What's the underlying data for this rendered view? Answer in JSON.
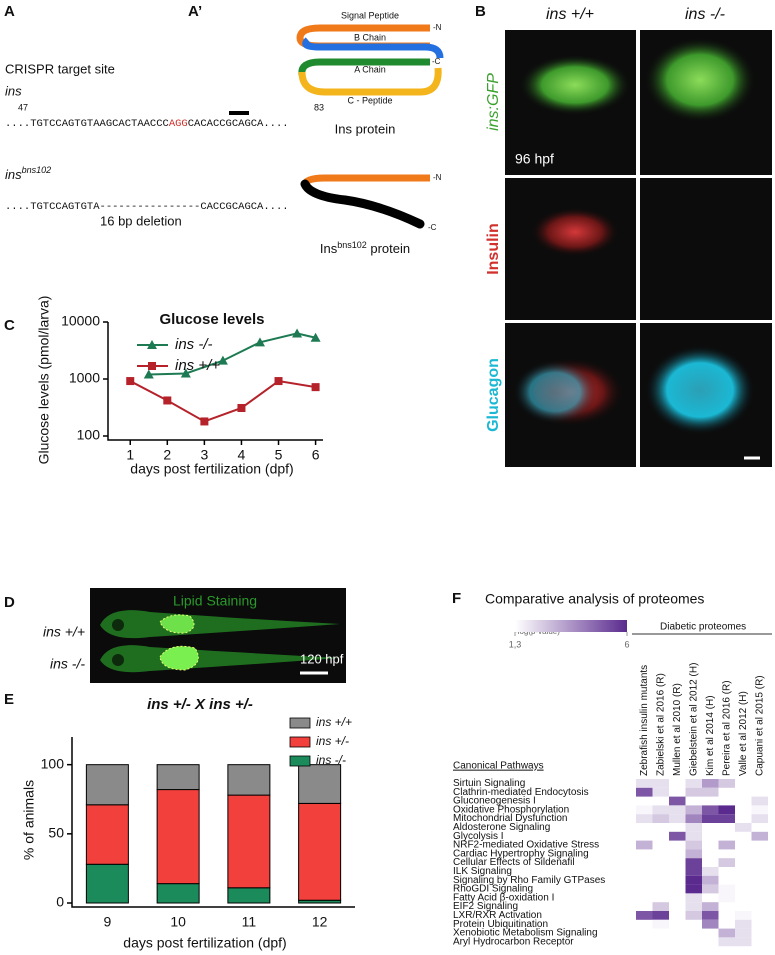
{
  "panels": {
    "A": {
      "label": "A",
      "target_title": "CRISPR target site",
      "gene": "ins",
      "pos_start": "47",
      "pos_end": "83",
      "wt_seq": {
        "before": "....TGTCCAGTGTAAGCACTAACCC",
        "pam": "AGG",
        "after": "CACACCGCAGCA...."
      },
      "mut_gene": {
        "gene": "ins",
        "superscript": "bns102"
      },
      "mut_seq": "....TGTCCAGTGTA----------------CACCGCAGCA....",
      "deletion": "16 bp deletion"
    },
    "A2": {
      "label": "A’",
      "parts": [
        "Signal Peptide",
        "B Chain",
        "A Chain",
        "C - Peptide"
      ],
      "n_end": "-N",
      "c_end": "-C",
      "caption": "Ins protein",
      "mut_caption": {
        "name": "Ins",
        "superscript": "bns102",
        "suffix": "protein"
      }
    },
    "B": {
      "label": "B",
      "columns": [
        "ins +/+",
        "ins -/-"
      ],
      "rows": [
        "ins:GFP",
        "Insulin",
        "Glucagon"
      ],
      "stage": "96 hpf"
    },
    "C": {
      "label": "C"
    },
    "D": {
      "label": "D",
      "title": "Lipid Staining",
      "rows": [
        "ins +/+",
        "ins -/-"
      ],
      "stage": "120 hpf"
    },
    "E": {
      "label": "E"
    },
    "F": {
      "label": "F",
      "title": "Comparative analysis of proteomes",
      "group": "Diabetic proteomes",
      "row_header": "Canonical Pathways"
    }
  },
  "chart_data": [
    {
      "type": "line",
      "title": "Glucose levels",
      "xlabel": "days post fertilization (dpf)",
      "ylabel": "Glucose levels (pmol/larva)",
      "xlim": [
        0.4,
        6.2
      ],
      "xticks": [
        1,
        2,
        3,
        4,
        5,
        6
      ],
      "ylim": [
        100,
        10000
      ],
      "yticks": [
        100,
        1000,
        10000
      ],
      "log_y": true,
      "series": [
        {
          "name": "ins -/-",
          "color": "#1d7a52",
          "marker": "triangle",
          "x": [
            1.5,
            2.5,
            3.5,
            4.5,
            5.5,
            6
          ],
          "values": [
            1200,
            1250,
            2100,
            4400,
            6300,
            5300
          ]
        },
        {
          "name": "ins +/+",
          "color": "#b5222a",
          "marker": "square",
          "x": [
            1,
            2,
            3,
            4,
            5,
            6
          ],
          "values": [
            920,
            420,
            180,
            310,
            920,
            720
          ]
        }
      ]
    },
    {
      "type": "stacked_bar",
      "title": "ins +/- X ins +/-",
      "xlabel": "days post fertilization (dpf)",
      "ylabel": "% of animals",
      "categories": [
        "9",
        "10",
        "11",
        "12"
      ],
      "ylim": [
        0,
        120
      ],
      "yticks": [
        0,
        50,
        100
      ],
      "series": [
        {
          "name": "ins -/-",
          "color": "#1c8b5c",
          "values": [
            28,
            14,
            11,
            2
          ]
        },
        {
          "name": "ins +/-",
          "color": "#f2403c",
          "values": [
            43,
            68,
            67,
            70
          ]
        },
        {
          "name": "ins +/+",
          "color": "#8a8a8a",
          "values": [
            29,
            18,
            22,
            28
          ]
        }
      ]
    },
    {
      "type": "heatmap",
      "colorbar_title": "-log(p-value)",
      "colorbar": {
        "range": [
          1.3,
          6
        ],
        "ticks": [
          {
            "value": 1.3,
            "label": "1,3"
          },
          6
        ],
        "colors": [
          "#ffffff",
          "#5a2a8e"
        ]
      },
      "columns": [
        "Zebrafish insulin mutants",
        "Zabielski et al 2016 (R)",
        "Mullen et al 2010 (R)",
        "Giebelstein et al 2012 (H)",
        "Kim et al 2014 (H)",
        "Pereira et al 2016 (R)",
        "Valle et al 2012 (H)",
        "Capuani et al 2015 (R)"
      ],
      "rows": [
        "Sirtuin Signaling",
        "Clathrin-mediated Endocytosis",
        "Gluconeogenesis I",
        "Oxidative Phosphorylation",
        "Mitochondrial Dysfunction",
        "Aldosterone Signaling",
        "Glycolysis I",
        "NRF2-mediated Oxidative Stress",
        "Cardiac Hypertrophy Signaling",
        "Cellular Effects of Sildenafil",
        "ILK Signaling",
        "Signaling by Rho Family GTPases",
        "RhoGDI Signaling",
        "Fatty Acid β-oxidation I",
        "EIF2 Signaling",
        "LXR/RXR Activation",
        "Protein Ubiquitination",
        "Xenobiotic Metabolism Signaling",
        "Aryl Hydrocarbon Receptor"
      ],
      "values": [
        [
          2,
          2,
          null,
          2,
          3.5,
          2.5,
          null,
          null
        ],
        [
          5,
          2,
          null,
          2.5,
          2.5,
          null,
          null,
          null
        ],
        [
          null,
          null,
          5,
          null,
          null,
          null,
          null,
          2
        ],
        [
          1.5,
          2,
          2,
          3,
          5,
          6,
          null,
          1.5
        ],
        [
          2,
          2.5,
          2,
          4,
          5.5,
          5.5,
          null,
          2
        ],
        [
          null,
          null,
          null,
          2,
          null,
          null,
          2,
          null
        ],
        [
          null,
          null,
          5,
          2,
          null,
          null,
          null,
          3
        ],
        [
          3,
          null,
          null,
          2.5,
          null,
          3,
          null,
          null
        ],
        [
          null,
          null,
          null,
          3,
          null,
          null,
          null,
          null
        ],
        [
          null,
          null,
          null,
          5.5,
          null,
          2.5,
          null,
          null
        ],
        [
          null,
          null,
          null,
          5.5,
          2,
          null,
          null,
          null
        ],
        [
          null,
          null,
          null,
          6,
          3,
          null,
          null,
          null
        ],
        [
          null,
          null,
          null,
          6,
          2.5,
          1.5,
          null,
          null
        ],
        [
          null,
          null,
          null,
          2,
          null,
          1.5,
          null,
          null
        ],
        [
          null,
          2.5,
          null,
          2,
          3,
          null,
          null,
          null
        ],
        [
          5,
          5.5,
          null,
          2.5,
          5,
          null,
          1.5,
          null
        ],
        [
          null,
          1.5,
          null,
          null,
          4,
          null,
          2,
          null
        ],
        [
          null,
          null,
          null,
          null,
          null,
          3,
          2,
          null
        ],
        [
          null,
          null,
          null,
          null,
          null,
          2,
          2,
          null
        ]
      ]
    }
  ]
}
